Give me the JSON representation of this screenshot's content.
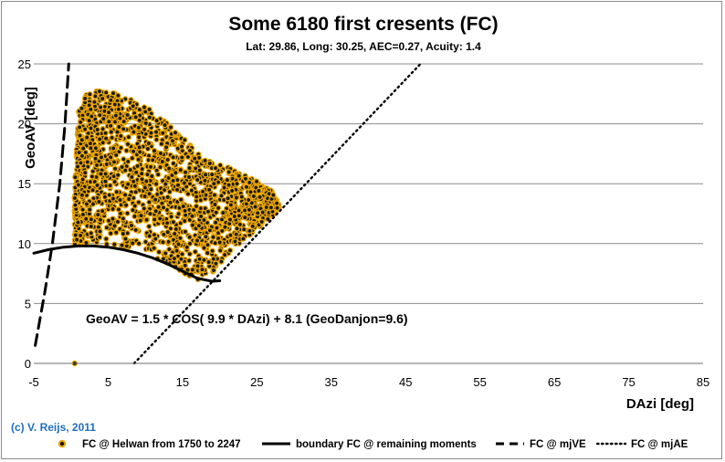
{
  "chart_data": {
    "type": "scatter",
    "title": "Some 6180 first cresents (FC)",
    "subtitle": "Lat: 29.86, Long: 30.25, AEC=0.27, Acuity: 1.4",
    "xlabel": "DAzi [deg]",
    "ylabel": "GeoAV [deg]",
    "xlim": [
      -5,
      85
    ],
    "ylim": [
      0,
      25
    ],
    "x_ticks": [
      -5,
      5,
      15,
      25,
      35,
      45,
      55,
      65,
      75,
      85
    ],
    "y_ticks": [
      0,
      5,
      10,
      15,
      20,
      25
    ],
    "grid": "horizontal",
    "annotation": "GeoAV = 1.5 * COS( 9.9 * DAzi) + 8.1 (GeoDanjon=9.6)",
    "credit": "(c) V. Reijs, 2011",
    "colors": {
      "point_fill": "#1a1a1a",
      "point_edge": "#f0a800",
      "line": "#000000",
      "grid": "#8c8c8c"
    },
    "series": [
      {
        "name": "FC @ Helwan from 1750 to 2247",
        "style": "scatter",
        "count": 6180,
        "cloud_envelope": {
          "x": [
            0.5,
            1,
            2,
            3,
            5,
            7,
            9,
            11,
            13,
            15,
            17,
            19,
            21,
            23,
            25,
            27,
            28
          ],
          "y_min": [
            9.8,
            9.9,
            10.0,
            10.0,
            9.9,
            9.7,
            9.4,
            8.9,
            8.3,
            7.6,
            6.9,
            7.6,
            8.8,
            10.1,
            11.2,
            12.3,
            13.0
          ],
          "y_max": [
            15.5,
            21.0,
            22.6,
            22.8,
            22.7,
            22.4,
            22.0,
            21.0,
            20.0,
            19.0,
            17.5,
            16.8,
            16.4,
            15.8,
            15.2,
            14.4,
            13.2
          ]
        },
        "extra_points": [
          [
            0.5,
            0.0
          ]
        ]
      },
      {
        "name": "boundary FC @ remaining moments",
        "style": "solid",
        "x": [
          -5,
          -3,
          -1,
          1,
          3,
          5,
          7,
          9,
          11,
          13,
          15,
          17,
          19,
          20
        ],
        "y": [
          9.2,
          9.5,
          9.7,
          9.8,
          9.8,
          9.7,
          9.5,
          9.2,
          8.8,
          8.3,
          7.7,
          7.1,
          6.85,
          6.9
        ]
      },
      {
        "name": "FC @ mjVE",
        "style": "dashed",
        "x": [
          -4.8,
          -3.5,
          -2.5,
          -1.5,
          -0.8,
          -0.3
        ],
        "y": [
          1.5,
          6.0,
          10.0,
          15.0,
          20.0,
          25.0
        ]
      },
      {
        "name": "FC @ mjAE",
        "style": "dotted",
        "x": [
          8.5,
          47.0
        ],
        "y": [
          0.0,
          25.0
        ]
      }
    ]
  }
}
